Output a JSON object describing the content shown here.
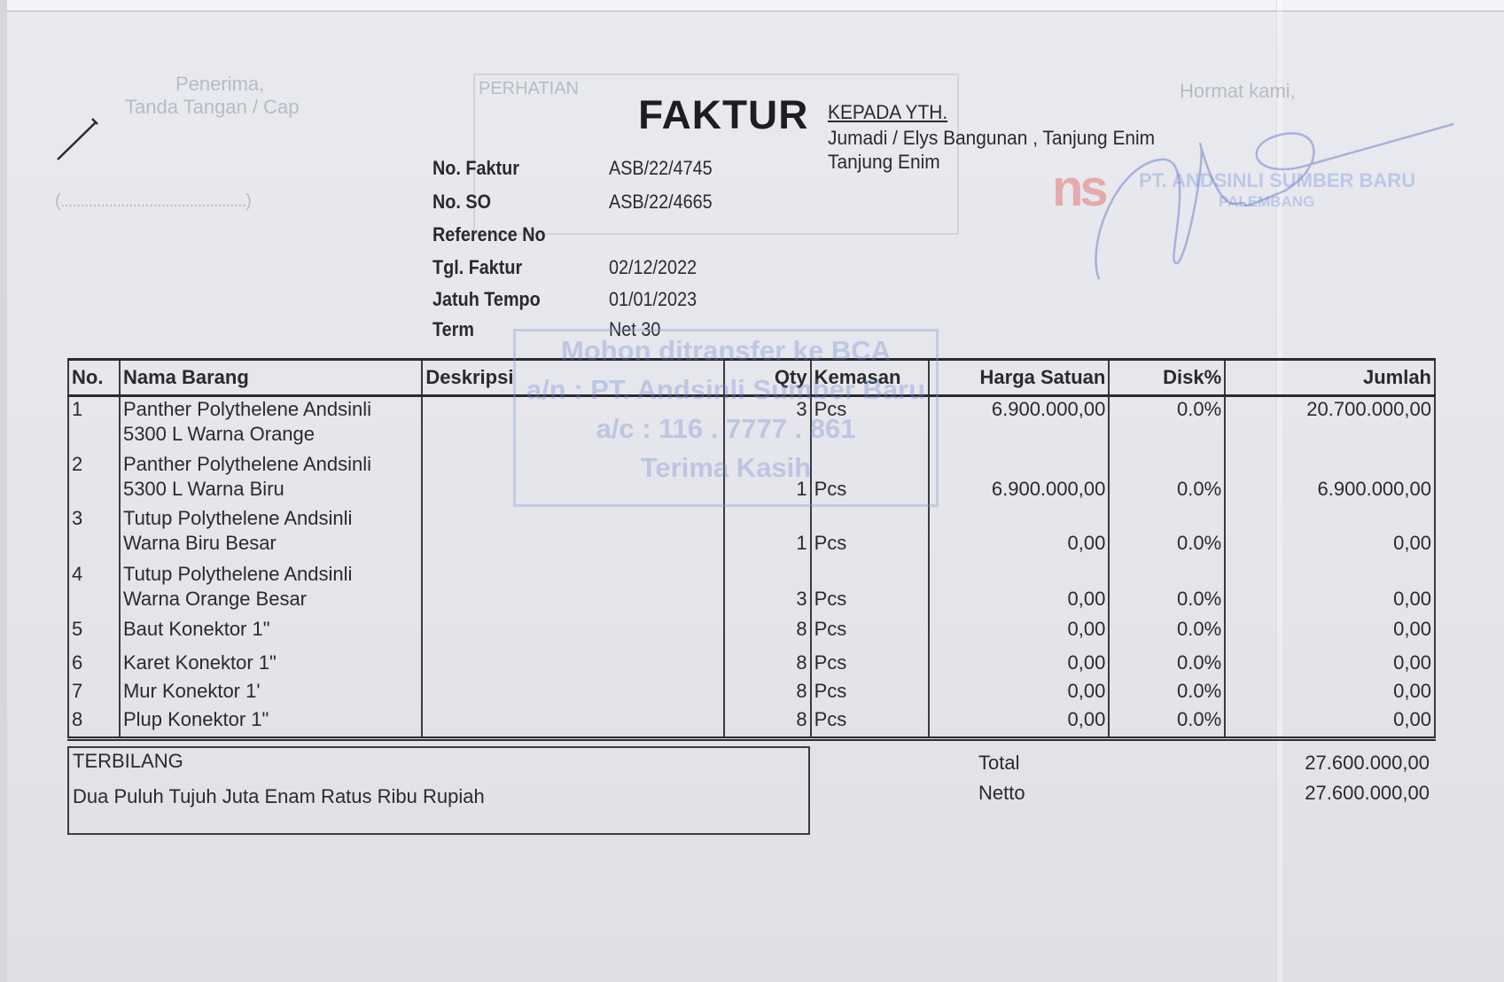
{
  "receiver_block": {
    "line1": "Penerima,",
    "line2": "Tanda Tangan / Cap",
    "signature_line": "(..............................................)"
  },
  "perhatian_label": "PERHATIAN",
  "title": "FAKTUR",
  "recipient": {
    "heading": "KEPADA YTH.",
    "name": "Jumadi / Elys Bangunan , Tanjung Enim",
    "city": "Tanjung Enim"
  },
  "sender": {
    "closing": "Hormat kami,",
    "logo_text": "PT. ANDSINLI SUMBER BARU",
    "logo_subtext": "PALEMBANG"
  },
  "fields": [
    {
      "label": "No. Faktur",
      "value": "ASB/22/4745"
    },
    {
      "label": "No. SO",
      "value": "ASB/22/4665"
    },
    {
      "label": "Reference No",
      "value": ""
    },
    {
      "label": "Tgl. Faktur",
      "value": "02/12/2022"
    },
    {
      "label": "Jatuh Tempo",
      "value": "01/01/2023"
    },
    {
      "label": "Term",
      "value": "Net 30"
    }
  ],
  "stamp": {
    "line1": "Mohon ditransfer ke BCA",
    "line2": "a/n : PT. Andsinli Sumber Baru",
    "line3": "a/c : 116 . 7777 . 861",
    "line4": "Terima Kasih"
  },
  "table": {
    "headers": {
      "no": "No.",
      "name": "Nama Barang",
      "desc": "Deskripsi",
      "qty": "Qty",
      "pack": "Kemasan",
      "price": "Harga Satuan",
      "disc": "Disk%",
      "total": "Jumlah"
    },
    "rows": [
      {
        "no": "1",
        "name1": "Panther Polythelene Andsinli",
        "name2": "5300 L Warna Orange",
        "desc": "",
        "qty": "3",
        "pack": "Pcs",
        "price": "6.900.000,00",
        "disc": "0.0%",
        "total": "20.700.000,00"
      },
      {
        "no": "2",
        "name1": "Panther Polythelene Andsinli",
        "name2": "5300 L Warna Biru",
        "desc": "",
        "qty": "1",
        "pack": "Pcs",
        "price": "6.900.000,00",
        "disc": "0.0%",
        "total": "6.900.000,00"
      },
      {
        "no": "3",
        "name1": "Tutup Polythelene Andsinli",
        "name2": "Warna Biru Besar",
        "desc": "",
        "qty": "1",
        "pack": "Pcs",
        "price": "0,00",
        "disc": "0.0%",
        "total": "0,00"
      },
      {
        "no": "4",
        "name1": "Tutup Polythelene Andsinli",
        "name2": "Warna Orange Besar",
        "desc": "",
        "qty": "3",
        "pack": "Pcs",
        "price": "0,00",
        "disc": "0.0%",
        "total": "0,00"
      },
      {
        "no": "5",
        "name1": "Baut Konektor 1\"",
        "desc": "",
        "qty": "8",
        "pack": "Pcs",
        "price": "0,00",
        "disc": "0.0%",
        "total": "0,00"
      },
      {
        "no": "6",
        "name1": "Karet Konektor 1\"",
        "desc": "",
        "qty": "8",
        "pack": "Pcs",
        "price": "0,00",
        "disc": "0.0%",
        "total": "0,00"
      },
      {
        "no": "7",
        "name1": "Mur Konektor 1'",
        "desc": "",
        "qty": "8",
        "pack": "Pcs",
        "price": "0,00",
        "disc": "0.0%",
        "total": "0,00"
      },
      {
        "no": "8",
        "name1": "Plup Konektor 1\"",
        "desc": "",
        "qty": "8",
        "pack": "Pcs",
        "price": "0,00",
        "disc": "0.0%",
        "total": "0,00"
      }
    ]
  },
  "terbilang": {
    "label": "TERBILANG",
    "text": "Dua Puluh Tujuh Juta Enam Ratus Ribu Rupiah"
  },
  "summary": {
    "total_label": "Total",
    "total_value": "27.600.000,00",
    "netto_label": "Netto",
    "netto_value": "27.600.000,00"
  }
}
